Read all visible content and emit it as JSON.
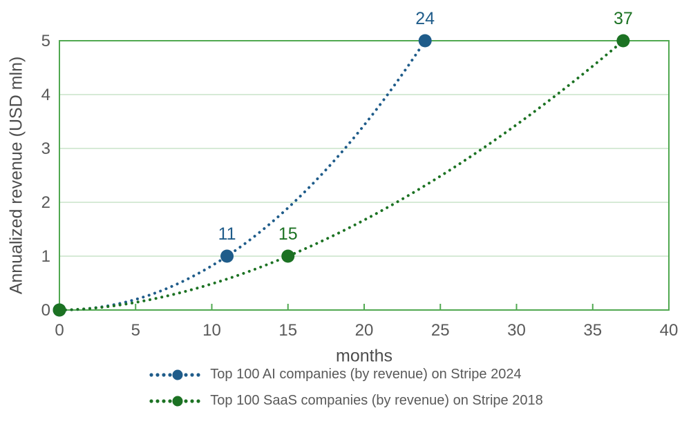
{
  "chart_data": {
    "type": "line",
    "title": "",
    "xlabel": "months",
    "ylabel": "Annualized revenue (USD mln)",
    "xlim": [
      0,
      40
    ],
    "ylim": [
      0,
      5
    ],
    "x_ticks": [
      0,
      5,
      10,
      15,
      20,
      25,
      30,
      35,
      40
    ],
    "y_ticks": [
      0,
      1,
      2,
      3,
      4,
      5
    ],
    "grid": "horizontal",
    "legend_position": "bottom",
    "series": [
      {
        "name": "Top 100 AI companies (by revenue) on Stripe 2024",
        "color": "#1f5c8a",
        "line_style": "dotted",
        "key_points": [
          {
            "x": 0,
            "y": 0
          },
          {
            "x": 11,
            "y": 1
          },
          {
            "x": 24,
            "y": 5
          }
        ],
        "annotations": [
          {
            "x": 11,
            "y": 1,
            "label": "11"
          },
          {
            "x": 24,
            "y": 5,
            "label": "24"
          }
        ]
      },
      {
        "name": "Top 100 SaaS companies (by revenue) on Stripe 2018",
        "color": "#1c7223",
        "line_style": "dotted",
        "key_points": [
          {
            "x": 0,
            "y": 0
          },
          {
            "x": 15,
            "y": 1
          },
          {
            "x": 37,
            "y": 5
          }
        ],
        "annotations": [
          {
            "x": 15,
            "y": 1,
            "label": "15"
          },
          {
            "x": 37,
            "y": 5,
            "label": "37"
          }
        ]
      }
    ],
    "colors": {
      "plot_border": "#50a850",
      "gridline": "#c9e3c9",
      "tick_text": "#595959",
      "axis_title_text": "#4d4d4d",
      "legend_text": "#595959",
      "background": "#ffffff"
    }
  }
}
